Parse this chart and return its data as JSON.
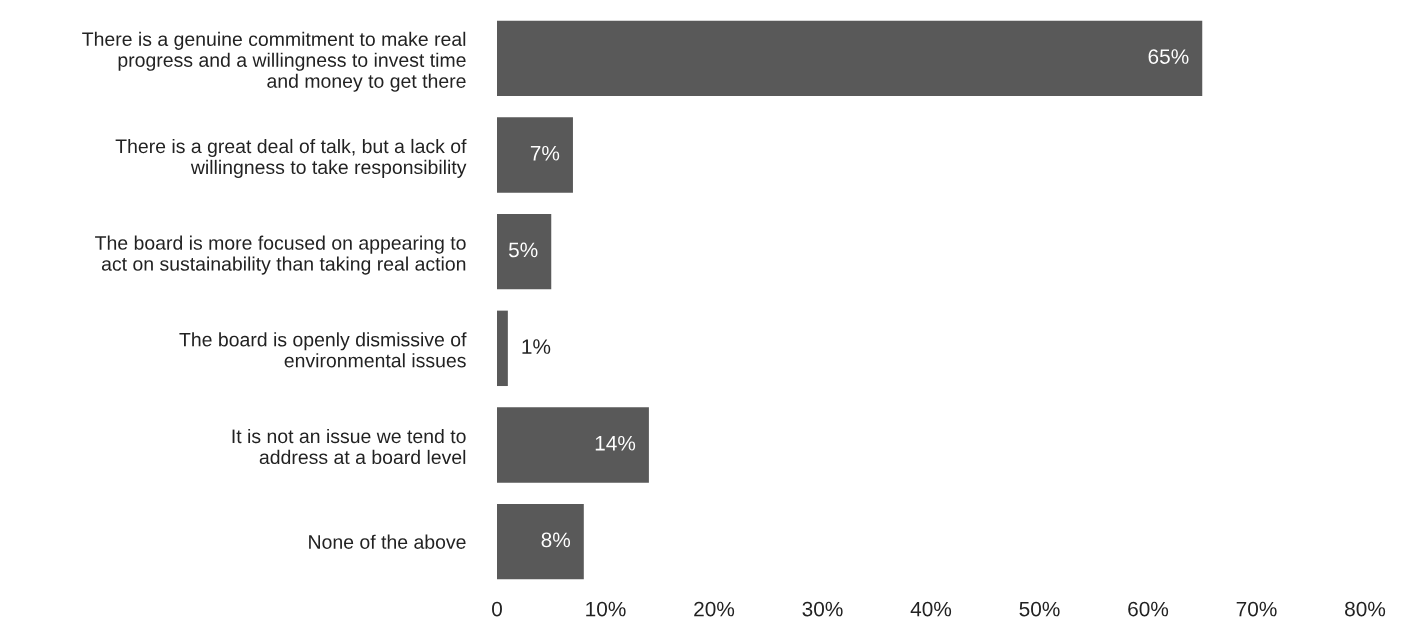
{
  "chart_data": {
    "type": "bar",
    "orientation": "horizontal",
    "categories": [
      "There is a genuine commitment to make real\nprogress and a willingness to invest time\nand money to get there",
      "There is a great deal of talk, but a lack of\nwillingness to take responsibility",
      "The board is more focused on appearing to\nact on sustainability than taking real action",
      "The board is openly dismissive of\nenvironmental issues",
      "It is not an issue we tend to\naddress at a board level",
      "None of the above"
    ],
    "values": [
      65,
      7,
      5,
      1,
      14,
      8
    ],
    "value_labels": [
      "65%",
      "7%",
      "5%",
      "1%",
      "14%",
      "8%"
    ],
    "color": "#595959",
    "xlim": [
      0,
      80
    ],
    "xticks": [
      0,
      {
        "value": 10,
        "label": "10%"
      },
      {
        "value": 20,
        "label": "20%"
      },
      {
        "value": 30,
        "label": "30%"
      },
      {
        "value": 40,
        "label": "40%"
      },
      {
        "value": 50,
        "label": "50%"
      },
      {
        "value": 60,
        "label": "60%"
      },
      {
        "value": 70,
        "label": "70%"
      },
      {
        "value": 80,
        "label": "80%"
      }
    ],
    "grid": false,
    "legend": false
  }
}
